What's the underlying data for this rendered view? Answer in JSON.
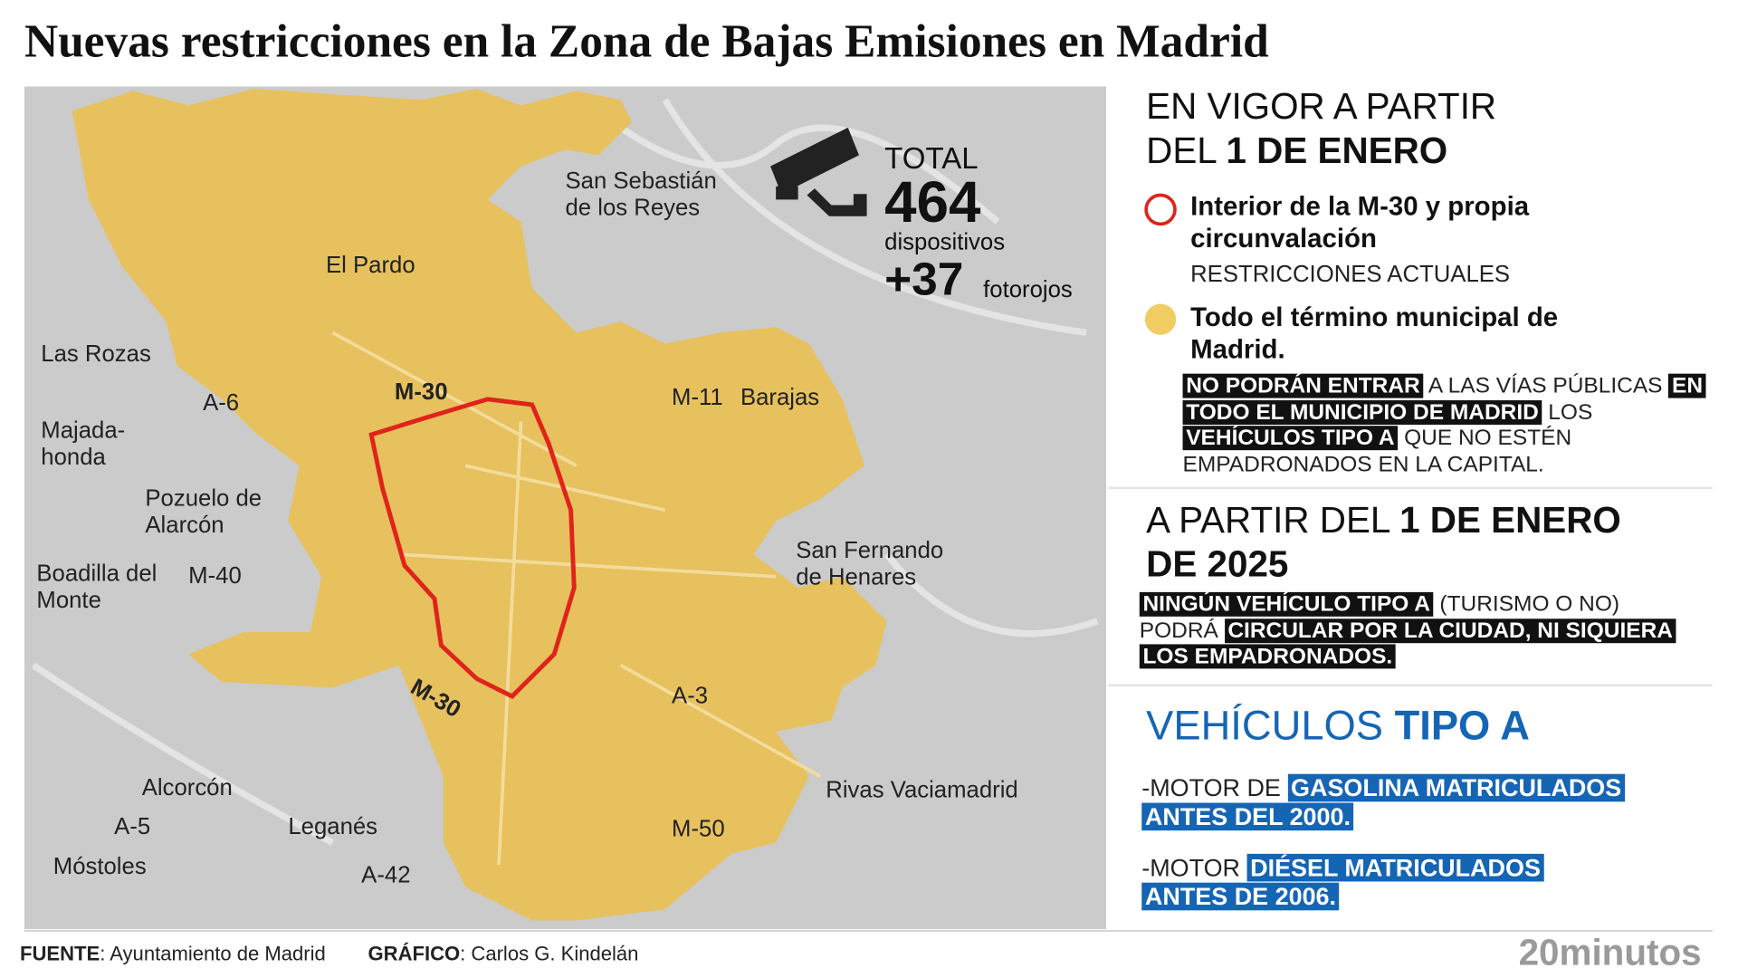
{
  "header": {
    "title": "Nuevas restricciones en la Zona de Bajas Emisiones en Madrid"
  },
  "map": {
    "labels": [
      "San Sebastián de los Reyes",
      "El Pardo",
      "Las Rozas",
      "A-6",
      "M-30",
      "Majada-honda",
      "Pozuelo de Alarcón",
      "Boadilla del Monte",
      "M-40",
      "M-11",
      "Barajas",
      "San Fernando de Henares",
      "A-3",
      "M-30",
      "Alcorcón",
      "A-5",
      "Leganés",
      "Móstoles",
      "A-42",
      "M-50",
      "Rivas Vaciamadrid"
    ],
    "counter": {
      "label": "TOTAL",
      "devices": 464,
      "devices_label": "dispositivos",
      "red_lights": "+37",
      "red_lights_label": "fotorojos"
    }
  },
  "panel": {
    "heading1": [
      {
        "text": "EN VIGOR A PARTIR DEL "
      },
      {
        "text": "1 DE ENERO",
        "bold": true
      }
    ],
    "legend": [
      {
        "title": "Interior de la M-30 y propia circunvalación",
        "subtitle": "RESTRICCIONES ACTUALES",
        "color": "#e0231b"
      },
      {
        "title": "Todo el término municipal de Madrid.",
        "color": "#f0cc63"
      }
    ],
    "paragraph1": [
      {
        "text": "NO PODRÁN ENTRAR",
        "highlight": "#111111"
      },
      {
        "text": " A LAS VÍAS PÚBLICAS "
      },
      {
        "text": "EN TODO EL MUNICIPIO DE MADRID",
        "highlight": "#111111"
      },
      {
        "text": " LOS "
      },
      {
        "text": "VEHÍCULOS TIPO A",
        "highlight": "#111111"
      },
      {
        "text": " QUE NO ESTÉN EMPADRONADOS EN LA CAPITAL."
      }
    ],
    "heading2": [
      {
        "text": "A PARTIR DEL "
      },
      {
        "text": "1 DE ENERO DE 2025",
        "bold": true
      }
    ],
    "paragraph2": [
      {
        "text": "NINGÚN VEHÍCULO TIPO A",
        "highlight": "#111111"
      },
      {
        "text": " (TURISMO O NO) PODRÁ "
      },
      {
        "text": "CIRCULAR POR LA CIUDAD, NI SIQUIERA LOS EMPADRONADOS.",
        "highlight": "#111111"
      }
    ],
    "heading3": [
      {
        "text": "VEHÍCULOS "
      },
      {
        "text": "TIPO A",
        "bold": true
      }
    ],
    "item1": [
      {
        "text": "-MOTOR DE "
      },
      {
        "text": "GASOLINA MATRICULADOS ANTES DEL 2000.",
        "highlight": "#1565b5"
      }
    ],
    "item2": [
      {
        "text": "-MOTOR "
      },
      {
        "text": "DIÉSEL MATRICULADOS ANTES DE 2006.",
        "highlight": "#1565b5"
      }
    ]
  },
  "footer": {
    "source": [
      {
        "text": "FUENTE",
        "bold": true
      },
      {
        "text": ": Ayuntamiento de Madrid"
      }
    ],
    "credit": [
      {
        "text": "GRÁFICO",
        "bold": true
      },
      {
        "text": ": Carlos G. Kindelán"
      }
    ],
    "logo": "20minutos"
  }
}
